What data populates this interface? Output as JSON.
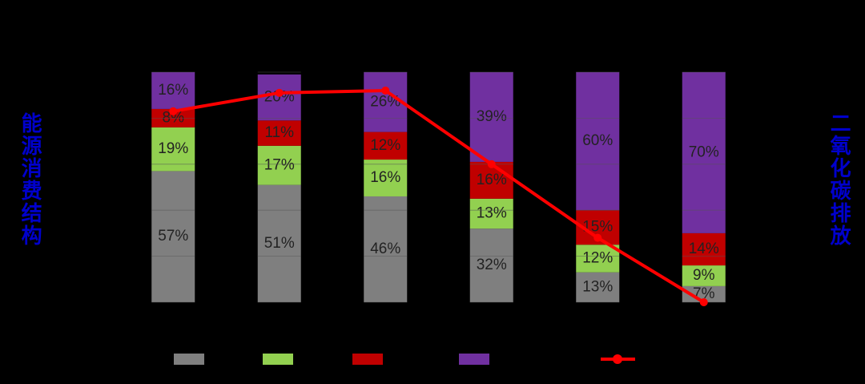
{
  "chart_data": {
    "type": "bar",
    "stacked": true,
    "y_label": "能源消费结构",
    "y2_label": "二氧化碳排放",
    "categories": [
      null,
      null,
      null,
      null,
      null,
      null
    ],
    "ylim": [
      0,
      100
    ],
    "yticks": [
      0,
      20,
      40,
      60,
      80,
      100
    ],
    "grid": true,
    "series": [
      {
        "color": "#7f7f7f",
        "values": [
          57,
          51,
          46,
          32,
          13,
          7
        ],
        "value_labels": [
          "57%",
          "51%",
          "46%",
          "32%",
          "13%",
          "7%"
        ]
      },
      {
        "color": "#92d050",
        "values": [
          19,
          17,
          16,
          13,
          12,
          9
        ],
        "value_labels": [
          "19%",
          "17%",
          "16%",
          "13%",
          "12%",
          "9%"
        ]
      },
      {
        "color": "#c00000",
        "values": [
          8,
          11,
          12,
          16,
          15,
          14
        ],
        "value_labels": [
          "8%",
          "11%",
          "12%",
          "16%",
          "15%",
          "14%"
        ]
      },
      {
        "color": "#7030a0",
        "values": [
          16,
          20,
          26,
          39,
          60,
          70
        ],
        "value_labels": [
          "16%",
          "20%",
          "26%",
          "39%",
          "60%",
          "70%"
        ]
      },
      {
        "type": "line",
        "axis": "y2",
        "color": "#ff0000",
        "values": [
          83,
          91,
          92,
          60,
          28,
          0
        ]
      }
    ],
    "y2lim": [
      0,
      100
    ]
  }
}
